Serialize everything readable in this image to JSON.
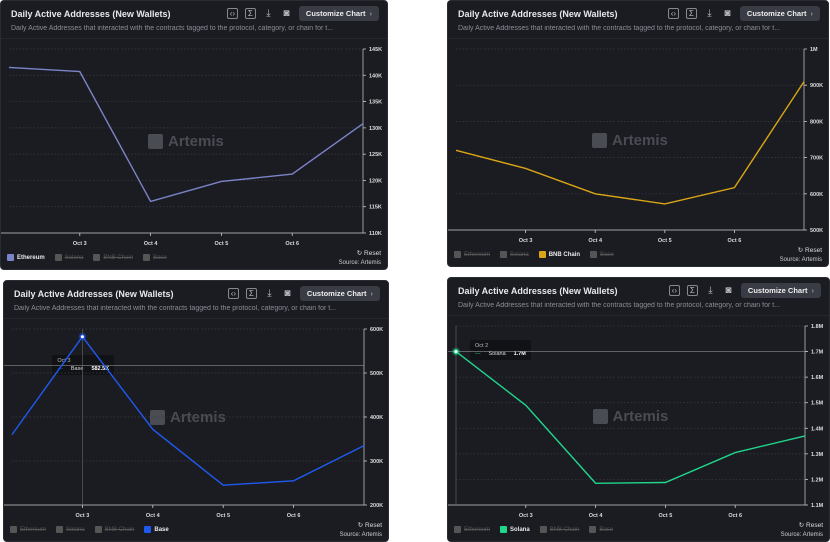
{
  "common": {
    "title": "Daily Active Addresses (New Wallets)",
    "subtitle": "Daily Active Addresses that interacted with the contracts tagged to the protocol, category, or chain for t...",
    "customize": "Customize Chart",
    "reset": "Reset",
    "source": "Source: Artemis",
    "watermark": "Artemis",
    "legend": [
      "Ethereum",
      "Solana",
      "BNB Chain",
      "Base"
    ]
  },
  "chart_data": [
    {
      "type": "line",
      "series_name": "Ethereum",
      "color": "#7b83c9",
      "active_legend": 0,
      "x": [
        "Oct 2",
        "Oct 3",
        "Oct 4",
        "Oct 5",
        "Oct 6",
        "Oct 7"
      ],
      "xticks": [
        "Oct 3",
        "Oct 4",
        "Oct 5",
        "Oct 6"
      ],
      "values": [
        141500,
        140700,
        116000,
        119800,
        121200,
        130800
      ],
      "ylim": [
        110000,
        145000
      ],
      "yticks": [
        {
          "v": 110000,
          "l": "110K"
        },
        {
          "v": 115000,
          "l": "115K"
        },
        {
          "v": 120000,
          "l": "120K"
        },
        {
          "v": 125000,
          "l": "125K"
        },
        {
          "v": 130000,
          "l": "130K"
        },
        {
          "v": 135000,
          "l": "135K"
        },
        {
          "v": 140000,
          "l": "140K"
        },
        {
          "v": 145000,
          "l": "145K"
        }
      ]
    },
    {
      "type": "line",
      "series_name": "BNB Chain",
      "color": "#d9a514",
      "active_legend": 2,
      "x": [
        "Oct 2",
        "Oct 3",
        "Oct 4",
        "Oct 5",
        "Oct 6",
        "Oct 7"
      ],
      "xticks": [
        "Oct 3",
        "Oct 4",
        "Oct 5",
        "Oct 6"
      ],
      "values": [
        720000,
        670000,
        600000,
        572000,
        617000,
        910000
      ],
      "ylim": [
        500000,
        1000000
      ],
      "yticks": [
        {
          "v": 500000,
          "l": "500K"
        },
        {
          "v": 600000,
          "l": "600K"
        },
        {
          "v": 700000,
          "l": "700K"
        },
        {
          "v": 800000,
          "l": "800K"
        },
        {
          "v": 900000,
          "l": "900K"
        },
        {
          "v": 1000000,
          "l": "1M"
        }
      ]
    },
    {
      "type": "line",
      "series_name": "Base",
      "color": "#1f5af0",
      "active_legend": 3,
      "x": [
        "Oct 2",
        "Oct 3",
        "Oct 4",
        "Oct 5",
        "Oct 6",
        "Oct 7"
      ],
      "xticks": [
        "Oct 3",
        "Oct 4",
        "Oct 5",
        "Oct 6"
      ],
      "values": [
        360000,
        582500,
        372000,
        245000,
        255000,
        335000
      ],
      "ylim": [
        200000,
        600000
      ],
      "yticks": [
        {
          "v": 200000,
          "l": "200K"
        },
        {
          "v": 300000,
          "l": "300K"
        },
        {
          "v": 400000,
          "l": "400K"
        },
        {
          "v": 500000,
          "l": "500K"
        },
        {
          "v": 600000,
          "l": "600K"
        }
      ],
      "tooltip": {
        "index": 1,
        "date": "Oct 3",
        "label": "Base",
        "value": "582.5K"
      }
    },
    {
      "type": "line",
      "series_name": "Solana",
      "color": "#1fd68a",
      "active_legend": 1,
      "x": [
        "Oct 2",
        "Oct 3",
        "Oct 4",
        "Oct 5",
        "Oct 6",
        "Oct 7"
      ],
      "xticks": [
        "Oct 3",
        "Oct 4",
        "Oct 5",
        "Oct 6"
      ],
      "values": [
        1700000,
        1490000,
        1185000,
        1188000,
        1305000,
        1370000
      ],
      "ylim": [
        1100000,
        1800000
      ],
      "yticks": [
        {
          "v": 1100000,
          "l": "1.1M"
        },
        {
          "v": 1200000,
          "l": "1.2M"
        },
        {
          "v": 1300000,
          "l": "1.3M"
        },
        {
          "v": 1400000,
          "l": "1.4M"
        },
        {
          "v": 1500000,
          "l": "1.5M"
        },
        {
          "v": 1600000,
          "l": "1.6M"
        },
        {
          "v": 1700000,
          "l": "1.7M"
        },
        {
          "v": 1800000,
          "l": "1.8M"
        }
      ],
      "tooltip": {
        "index": 0,
        "date": "Oct 2",
        "label": "Solana",
        "value": "1.7M"
      }
    }
  ]
}
